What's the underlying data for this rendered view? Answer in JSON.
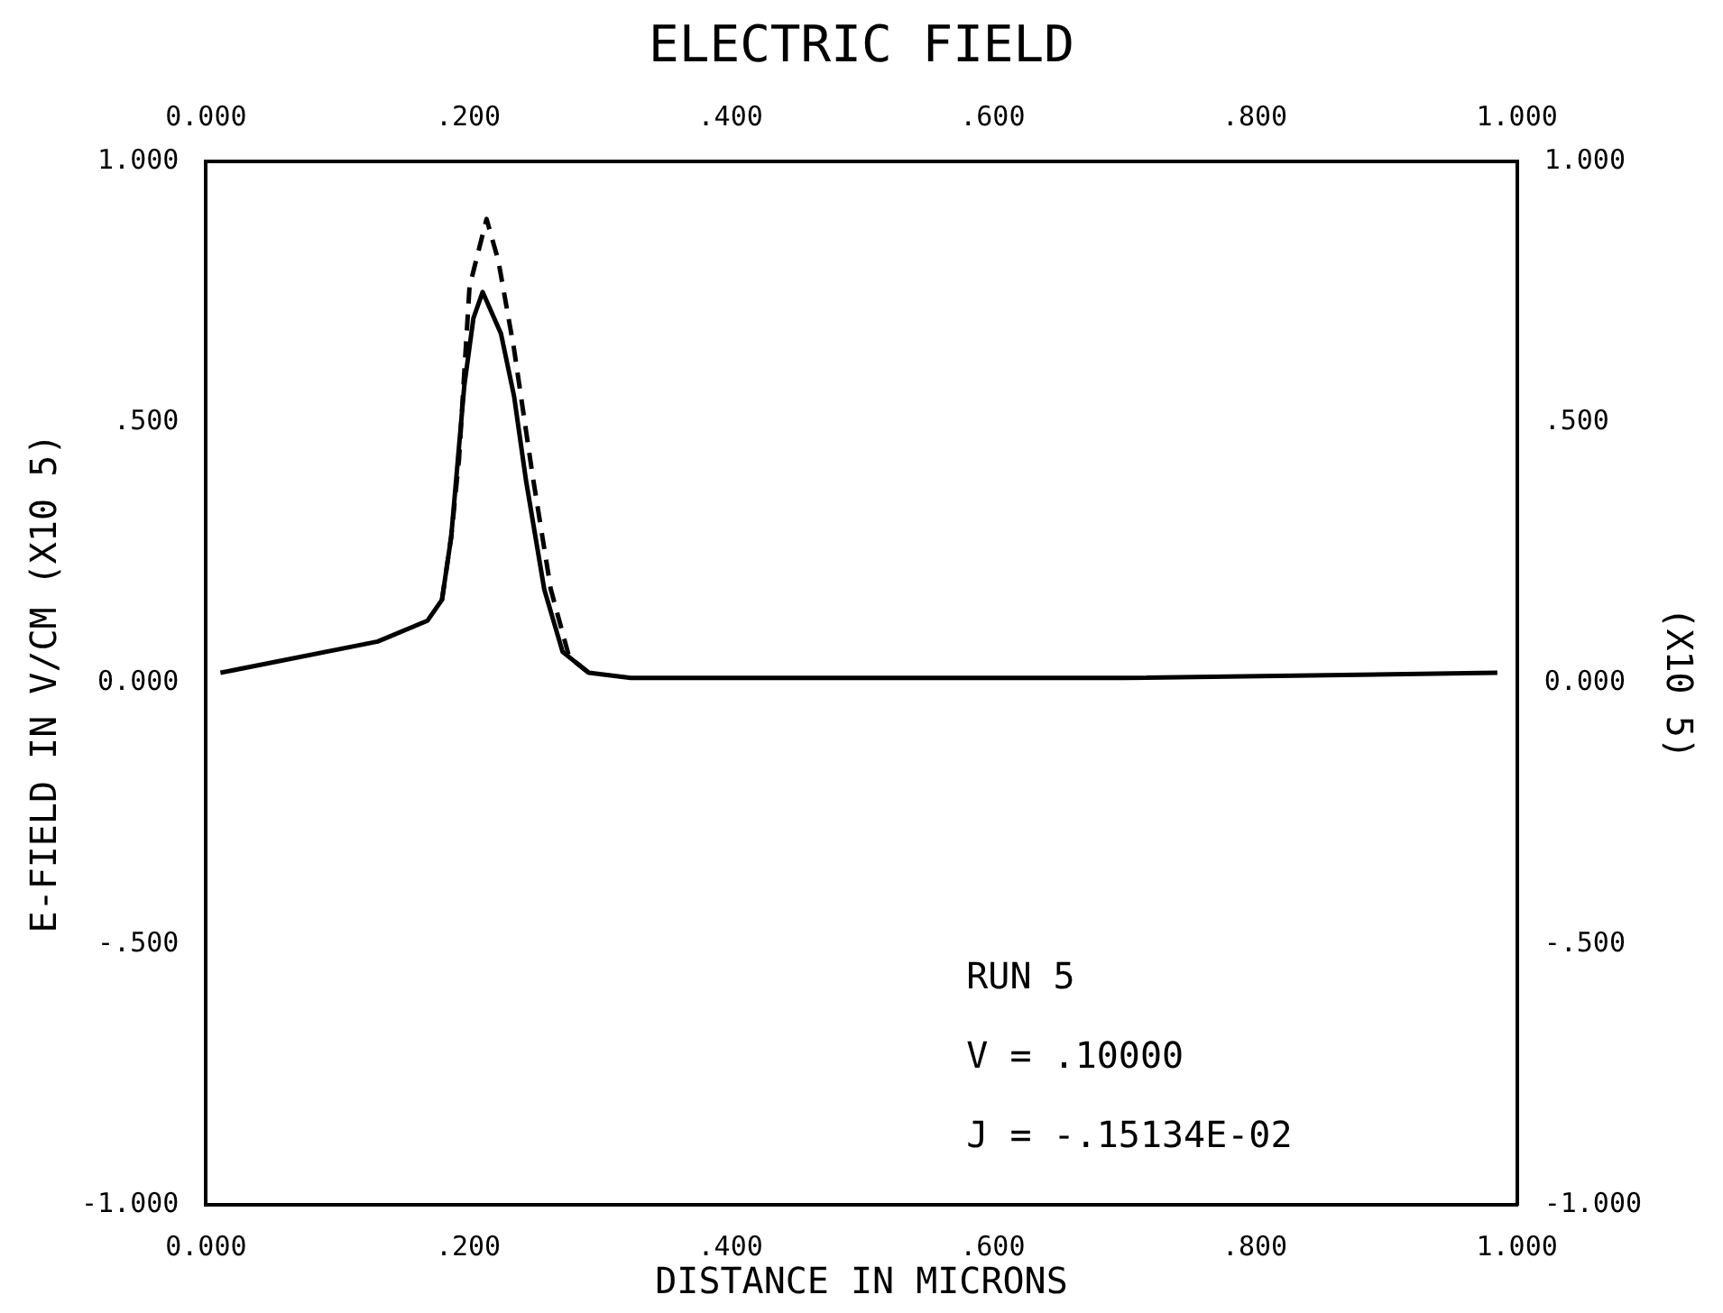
{
  "chart_data": {
    "type": "line",
    "title": "ELECTRIC FIELD",
    "xlabel": "DISTANCE IN MICRONS",
    "ylabel": "E-FIELD IN V/CM (X10 5)",
    "y2label": "(X10 5)",
    "xlim": [
      0,
      1
    ],
    "xticks": [
      {
        "value": 0,
        "label": "0.000"
      },
      {
        "value": 0.2,
        "label": ".200"
      },
      {
        "value": 0.4,
        "label": ".400"
      },
      {
        "value": 0.6,
        "label": ".600"
      },
      {
        "value": 0.8,
        "label": ".800"
      },
      {
        "value": 1,
        "label": "1.000"
      }
    ],
    "x2lim": [
      0,
      1
    ],
    "x2ticks": [
      {
        "value": 0,
        "label": "0.000"
      },
      {
        "value": 0.2,
        "label": ".200"
      },
      {
        "value": 0.4,
        "label": ".400"
      },
      {
        "value": 0.6,
        "label": ".600"
      },
      {
        "value": 0.8,
        "label": ".800"
      },
      {
        "value": 1,
        "label": "1.000"
      }
    ],
    "ylim": [
      -1,
      1
    ],
    "yticks": [
      {
        "value": -1,
        "label": "-1.000"
      },
      {
        "value": -0.5,
        "label": "-.500"
      },
      {
        "value": 0,
        "label": "0.000"
      },
      {
        "value": 0.5,
        "label": ".500"
      },
      {
        "value": 1,
        "label": "1.000"
      }
    ],
    "y2lim": [
      -1,
      1
    ],
    "y2ticks": [
      {
        "value": -1,
        "label": "-1.000"
      },
      {
        "value": -0.5,
        "label": "-.500"
      },
      {
        "value": 0,
        "label": "0.000"
      },
      {
        "value": 0.5,
        "label": ".500"
      },
      {
        "value": 1,
        "label": "1.000"
      }
    ],
    "grid": false,
    "legend": false,
    "marker": "none",
    "series": [
      {
        "color": "#000000",
        "line_style": "solid",
        "x": [
          0.011,
          0.131,
          0.169,
          0.18,
          0.187,
          0.197,
          0.204,
          0.211,
          0.225,
          0.235,
          0.244,
          0.258,
          0.272,
          0.292,
          0.324,
          0.5,
          0.7,
          0.985
        ],
        "values": [
          0.02,
          0.08,
          0.12,
          0.16,
          0.28,
          0.57,
          0.7,
          0.75,
          0.67,
          0.55,
          0.39,
          0.18,
          0.06,
          0.02,
          0.01,
          0.01,
          0.01,
          0.02
        ]
      },
      {
        "color": "#000000",
        "line_style": "dashed",
        "x": [
          0.18,
          0.187,
          0.193,
          0.201,
          0.214,
          0.223,
          0.235,
          0.249,
          0.263,
          0.277,
          0.292
        ],
        "values": [
          0.16,
          0.28,
          0.43,
          0.76,
          0.89,
          0.81,
          0.64,
          0.4,
          0.18,
          0.05,
          0.02
        ]
      }
    ],
    "annotations": [
      "RUN 5",
      "V = .10000",
      "J = -.15134E-02"
    ]
  }
}
